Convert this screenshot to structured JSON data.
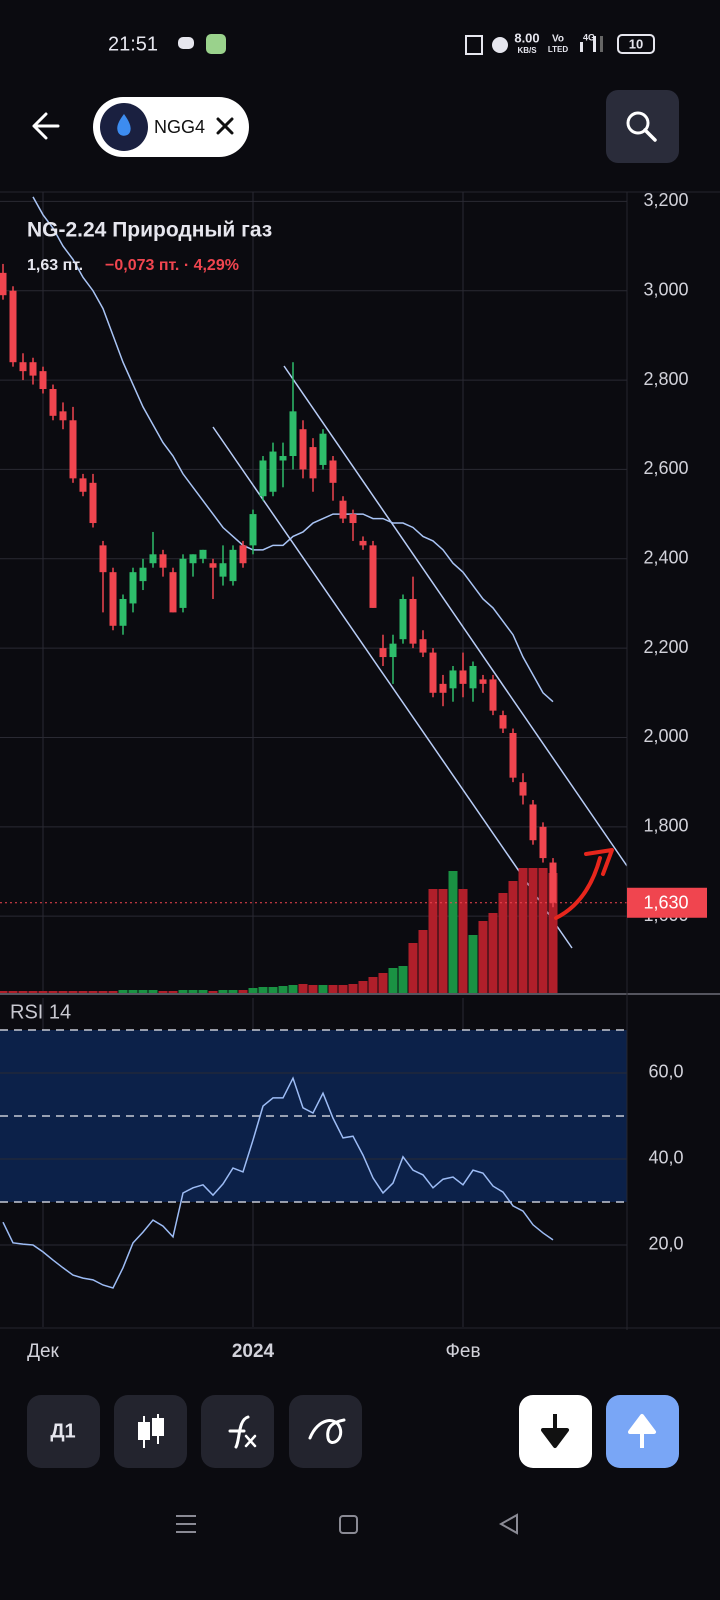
{
  "status_bar": {
    "time": "21:51",
    "speed": "8.00",
    "speed_unit": "KB/S",
    "volte_top": "Vo",
    "volte_bottom": "LTED",
    "network": "4G",
    "battery": "10"
  },
  "header": {
    "ticker": "NGG4"
  },
  "toolbar": {
    "interval": "Д1"
  },
  "chart_data": [
    {
      "type": "candlestick",
      "title": "NG-2.24 Природный газ",
      "price_text": "1,63 пт.",
      "change_text": "−0,073 пт. · 4,29%",
      "categories": [
        null,
        null,
        null,
        null,
        "Дек",
        null,
        null,
        null,
        null,
        null,
        null,
        null,
        null,
        null,
        null,
        null,
        null,
        null,
        null,
        null,
        null,
        null,
        null,
        null,
        null,
        "2024",
        null,
        null,
        null,
        null,
        null,
        null,
        null,
        null,
        null,
        null,
        null,
        null,
        null,
        null,
        null,
        null,
        null,
        null,
        null,
        null,
        "Фев",
        null,
        null,
        null,
        null,
        null,
        null,
        null,
        null,
        null
      ],
      "open": [
        3.04,
        3.0,
        2.84,
        2.84,
        2.82,
        2.78,
        2.73,
        2.71,
        2.58,
        2.57,
        2.43,
        2.37,
        2.25,
        2.3,
        2.35,
        2.39,
        2.41,
        2.37,
        2.29,
        2.39,
        2.4,
        2.39,
        2.36,
        2.35,
        2.43,
        2.43,
        2.54,
        2.55,
        2.62,
        2.63,
        2.69,
        2.65,
        2.61,
        2.62,
        2.53,
        2.5,
        2.44,
        2.43,
        2.2,
        2.18,
        2.22,
        2.31,
        2.22,
        2.19,
        2.12,
        2.11,
        2.15,
        2.11,
        2.13,
        2.13,
        2.05,
        2.01,
        1.9,
        1.85,
        1.8,
        1.72
      ],
      "high": [
        3.06,
        3.01,
        2.86,
        2.85,
        2.83,
        2.79,
        2.75,
        2.74,
        2.59,
        2.59,
        2.44,
        2.38,
        2.32,
        2.38,
        2.4,
        2.46,
        2.42,
        2.38,
        2.41,
        2.41,
        2.42,
        2.4,
        2.43,
        2.43,
        2.44,
        2.51,
        2.63,
        2.66,
        2.66,
        2.84,
        2.71,
        2.67,
        2.69,
        2.63,
        2.54,
        2.51,
        2.45,
        2.44,
        2.23,
        2.23,
        2.32,
        2.36,
        2.24,
        2.2,
        2.14,
        2.16,
        2.19,
        2.17,
        2.14,
        2.14,
        2.06,
        2.02,
        1.92,
        1.86,
        1.81,
        1.73
      ],
      "low": [
        2.98,
        2.83,
        2.8,
        2.79,
        2.77,
        2.71,
        2.69,
        2.57,
        2.54,
        2.47,
        2.28,
        2.24,
        2.23,
        2.28,
        2.33,
        2.38,
        2.36,
        2.28,
        2.28,
        2.36,
        2.39,
        2.31,
        2.34,
        2.34,
        2.38,
        2.41,
        2.53,
        2.54,
        2.56,
        2.6,
        2.58,
        2.55,
        2.6,
        2.53,
        2.48,
        2.44,
        2.42,
        2.29,
        2.16,
        2.12,
        2.21,
        2.2,
        2.18,
        2.09,
        2.07,
        2.08,
        2.09,
        2.08,
        2.1,
        2.05,
        2.01,
        1.9,
        1.85,
        1.76,
        1.72,
        1.62
      ],
      "close": [
        2.99,
        2.84,
        2.82,
        2.81,
        2.78,
        2.72,
        2.71,
        2.58,
        2.55,
        2.48,
        2.37,
        2.25,
        2.31,
        2.37,
        2.38,
        2.41,
        2.38,
        2.28,
        2.4,
        2.41,
        2.42,
        2.38,
        2.39,
        2.42,
        2.39,
        2.5,
        2.62,
        2.64,
        2.63,
        2.73,
        2.6,
        2.58,
        2.68,
        2.57,
        2.49,
        2.48,
        2.43,
        2.29,
        2.18,
        2.21,
        2.31,
        2.21,
        2.19,
        2.1,
        2.1,
        2.15,
        2.12,
        2.16,
        2.12,
        2.06,
        2.02,
        1.91,
        1.87,
        1.77,
        1.73,
        1.63
      ],
      "ma": [
        null,
        null,
        null,
        3.21,
        3.17,
        3.14,
        3.1,
        3.07,
        3.03,
        3.0,
        2.96,
        2.9,
        2.84,
        2.79,
        2.74,
        2.7,
        2.66,
        2.63,
        2.59,
        2.56,
        2.53,
        2.5,
        2.47,
        2.45,
        2.43,
        2.42,
        2.42,
        2.43,
        2.43,
        2.45,
        2.46,
        2.48,
        2.49,
        2.5,
        2.5,
        2.5,
        2.5,
        2.49,
        2.49,
        2.48,
        2.48,
        2.47,
        2.45,
        2.44,
        2.42,
        2.39,
        2.37,
        2.34,
        2.31,
        2.29,
        2.26,
        2.23,
        2.18,
        2.14,
        2.1,
        2.08
      ],
      "ma_color": "#a9c4f5",
      "volumes": [
        2,
        2,
        2,
        2,
        2,
        2,
        2,
        2,
        2,
        2,
        2,
        2,
        3,
        3,
        3,
        3,
        2,
        2,
        3,
        3,
        3,
        2,
        3,
        3,
        3,
        5,
        6,
        6,
        7,
        8,
        9,
        8,
        8,
        8,
        8,
        9,
        12,
        16,
        20,
        25,
        27,
        50,
        63,
        104,
        104,
        122,
        104,
        58,
        72,
        80,
        100,
        112,
        125,
        125,
        125,
        120
      ],
      "volume_ylim": [
        0,
        160
      ],
      "up_color": "#2ebd6b",
      "down_color": "#f0454f",
      "volume_up_color": "#1a9243",
      "volume_down_color": "#b01f2a",
      "ylim": [
        1.428,
        3.221
      ],
      "yticks": [
        {
          "value": 3.2,
          "label": "3,200"
        },
        {
          "value": 3.0,
          "label": "3,000"
        },
        {
          "value": 2.8,
          "label": "2,800"
        },
        {
          "value": 2.6,
          "label": "2,600"
        },
        {
          "value": 2.4,
          "label": "2,400"
        },
        {
          "value": 2.2,
          "label": "2,200"
        },
        {
          "value": 2.0,
          "label": "2,000"
        },
        {
          "value": 1.8,
          "label": "1,800"
        },
        {
          "value": 1.6,
          "label": "1,600"
        }
      ],
      "last_price": {
        "value": 1.63,
        "label": "1,630"
      },
      "grid": true
    },
    {
      "type": "line",
      "title": "RSI 14",
      "values": [
        25.3,
        20.5,
        20.2,
        20.0,
        18.4,
        16.5,
        14.7,
        13.0,
        12.3,
        11.9,
        10.7,
        10.0,
        14.7,
        20.5,
        23.0,
        25.8,
        24.4,
        21.9,
        32.1,
        33.3,
        34.0,
        31.6,
        34.2,
        37.9,
        37.0,
        44.4,
        52.3,
        54.2,
        54.2,
        58.8,
        51.9,
        50.7,
        55.3,
        49.5,
        44.9,
        45.3,
        40.9,
        35.6,
        32.1,
        34.4,
        40.5,
        37.4,
        36.3,
        33.3,
        35.3,
        35.8,
        34.0,
        37.4,
        36.7,
        33.7,
        32.3,
        29.1,
        27.9,
        24.7,
        22.8,
        21.2
      ],
      "color": "#9dbcf5",
      "ylim": [
        0.93,
        77.44
      ],
      "yticks": [
        {
          "value": 60,
          "label": "60,0"
        },
        {
          "value": 40,
          "label": "40,0"
        },
        {
          "value": 20,
          "label": "20,0"
        }
      ],
      "band": [
        30,
        70
      ],
      "band_color": "#0c2149",
      "levels": [
        70,
        50,
        30
      ],
      "grid": true
    }
  ]
}
